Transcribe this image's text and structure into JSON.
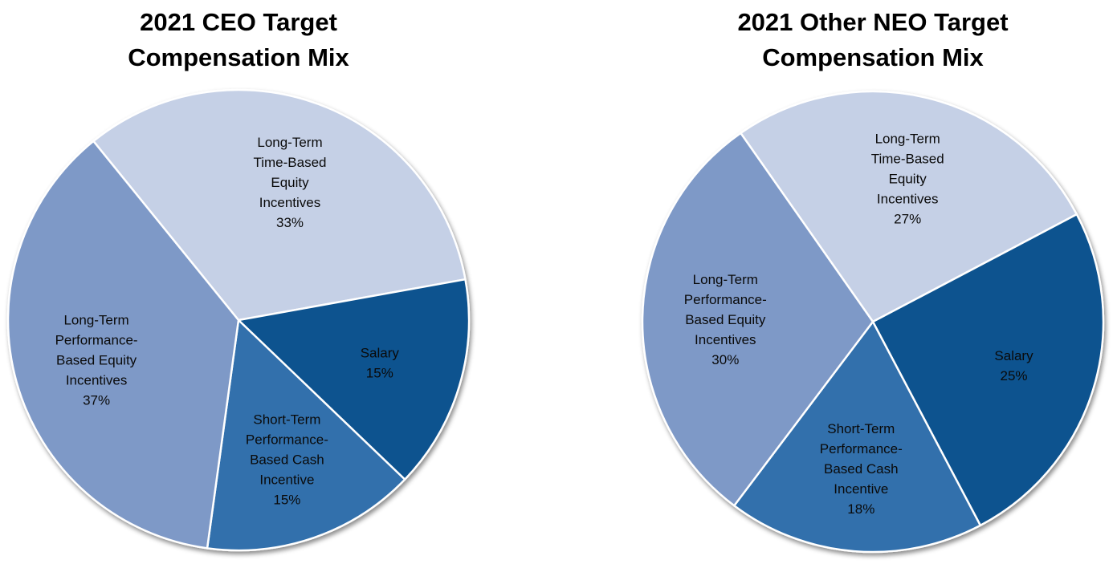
{
  "figure": {
    "background": "#ffffff",
    "title_color": "#000000",
    "label_color": "#0a0a0a",
    "separator_color": "#ffffff"
  },
  "chart_data": [
    {
      "type": "pie",
      "title": "2021 CEO Target Compensation Mix",
      "title_lines": [
        "2021 CEO Target",
        "Compensation Mix"
      ],
      "legend": "none",
      "label_position": "inside",
      "start_angle_deg": -39,
      "slices": [
        {
          "label": "Long-Term Time-Based Equity Incentives",
          "pct": 33,
          "color": "#c5d0e6",
          "label_lines": [
            "Long-Term",
            "Time-Based",
            "Equity",
            "Incentives",
            "33%"
          ]
        },
        {
          "label": "Salary",
          "pct": 15,
          "color": "#11538f",
          "label_lines": [
            "Salary",
            "15%"
          ]
        },
        {
          "label": "Short-Term Performance-Based Cash Incentive",
          "pct": 15,
          "color": "#3170ac",
          "label_lines": [
            "Short-Term",
            "Performance-",
            "Based Cash",
            "Incentive",
            "15%"
          ]
        },
        {
          "label": "Long-Term Performance-Based Equity Incentives",
          "pct": 37,
          "color": "#7e99c7",
          "label_lines": [
            "Long-Term",
            "Performance-",
            "Based Equity",
            "Incentives",
            "37%"
          ]
        }
      ]
    },
    {
      "type": "pie",
      "title": "2021 Other NEO Target Compensation Mix",
      "title_lines": [
        "2021 Other NEO Target",
        "Compensation Mix"
      ],
      "legend": "none",
      "label_position": "inside",
      "start_angle_deg": -35,
      "slices": [
        {
          "label": "Long-Term Time-Based Equity Incentives",
          "pct": 27,
          "color": "#c5d0e6",
          "label_lines": [
            "Long-Term",
            "Time-Based",
            "Equity",
            "Incentives",
            "27%"
          ]
        },
        {
          "label": "Salary",
          "pct": 25,
          "color": "#11538f",
          "label_lines": [
            "Salary",
            "25%"
          ]
        },
        {
          "label": "Short-Term Performance-Based Cash Incentive",
          "pct": 18,
          "color": "#3170ac",
          "label_lines": [
            "Short-Term",
            "Performance-",
            "Based Cash",
            "Incentive",
            "18%"
          ]
        },
        {
          "label": "Long-Term Performance-Based Equity Incentives",
          "pct": 30,
          "color": "#7e99c7",
          "label_lines": [
            "Long-Term",
            "Performance-",
            "Based Equity",
            "Incentives",
            "30%"
          ]
        }
      ]
    }
  ]
}
